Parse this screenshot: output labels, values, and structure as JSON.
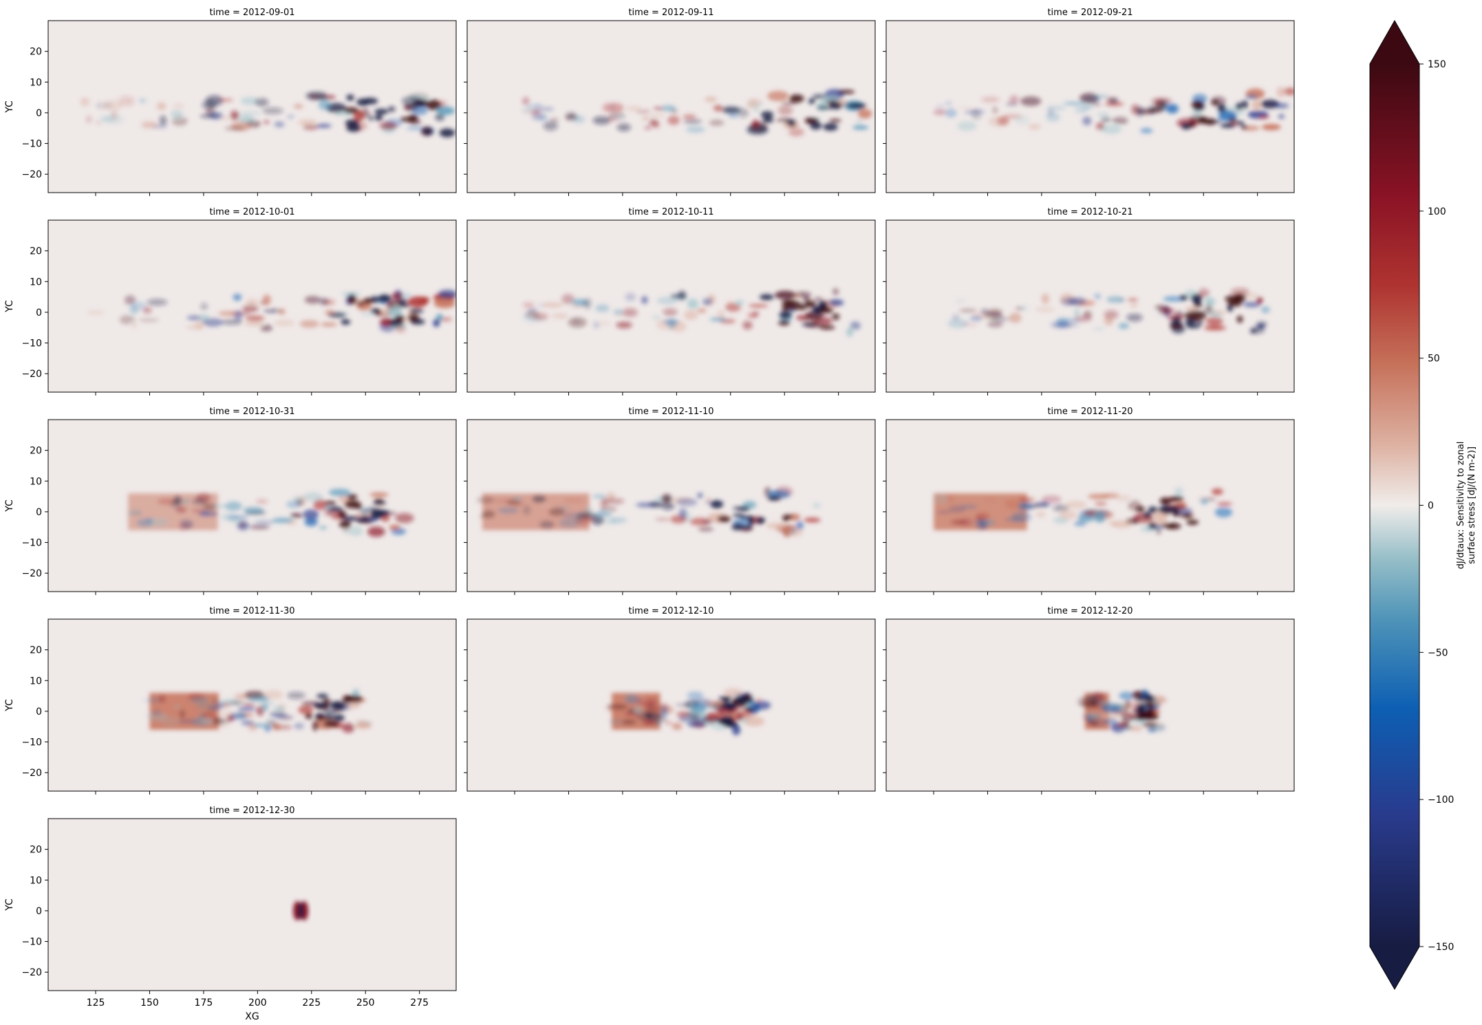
{
  "chart_data": {
    "type": "heatmap",
    "layout": "facet-grid",
    "facet": {
      "rows": 5,
      "cols": 3,
      "title_prefix": "time = "
    },
    "panels": [
      {
        "title": "time = 2012-09-01"
      },
      {
        "title": "time = 2012-09-11"
      },
      {
        "title": "time = 2012-09-21"
      },
      {
        "title": "time = 2012-10-01"
      },
      {
        "title": "time = 2012-10-11"
      },
      {
        "title": "time = 2012-10-21"
      },
      {
        "title": "time = 2012-10-31"
      },
      {
        "title": "time = 2012-11-10"
      },
      {
        "title": "time = 2012-11-20"
      },
      {
        "title": "time = 2012-11-30"
      },
      {
        "title": "time = 2012-12-10"
      },
      {
        "title": "time = 2012-12-20"
      },
      {
        "title": "time = 2012-12-30"
      }
    ],
    "features": [
      {
        "xmin": 120,
        "xmax": 295,
        "amp": 1.0,
        "west_red": 0.0,
        "focus": 0
      },
      {
        "xmin": 125,
        "xmax": 290,
        "amp": 1.0,
        "west_red": 0.0,
        "focus": 0
      },
      {
        "xmin": 128,
        "xmax": 290,
        "amp": 1.0,
        "west_red": 0.0,
        "focus": 0
      },
      {
        "xmin": 125,
        "xmax": 290,
        "amp": 1.0,
        "west_red": 0.0,
        "focus": 0
      },
      {
        "xmin": 130,
        "xmax": 285,
        "amp": 1.0,
        "west_red": 0.0,
        "focus": 0
      },
      {
        "xmin": 135,
        "xmax": 280,
        "amp": 1.0,
        "west_red": 0.0,
        "focus": 0
      },
      {
        "xmin": 140,
        "xmax": 270,
        "amp": 1.0,
        "west_red": 0.3,
        "focus": 0
      },
      {
        "xmin": 110,
        "xmax": 265,
        "amp": 1.0,
        "west_red": 0.5,
        "focus": 0
      },
      {
        "xmin": 125,
        "xmax": 260,
        "amp": 1.0,
        "west_red": 0.8,
        "focus": 0
      },
      {
        "xmin": 150,
        "xmax": 250,
        "amp": 1.0,
        "west_red": 1.0,
        "focus": 0
      },
      {
        "xmin": 170,
        "xmax": 240,
        "amp": 1.0,
        "west_red": 1.0,
        "focus": 0
      },
      {
        "xmin": 195,
        "xmax": 230,
        "amp": 1.0,
        "west_red": 1.0,
        "focus": 0
      },
      {
        "xmin": 215,
        "xmax": 225,
        "amp": 1.0,
        "west_red": 0.0,
        "focus": 1
      }
    ],
    "xlabel": "XG",
    "ylabel": "YC",
    "xlim": [
      103,
      292
    ],
    "ylim": [
      -26,
      30
    ],
    "xticks": [
      125,
      150,
      175,
      200,
      225,
      250,
      275
    ],
    "yticks": [
      20,
      10,
      0,
      -10,
      -20
    ],
    "colorbar": {
      "label_line1": "dJ/dtaux: Sensitivity to zonal",
      "label_line2": "surface stress [dJ/(N m-2)]",
      "vmin": -150,
      "vmax": 150,
      "ticks": [
        150,
        100,
        50,
        0,
        -50,
        -100,
        -150
      ],
      "tick_labels": [
        "150",
        "100",
        "50",
        "0",
        "−50",
        "−100",
        "−150"
      ],
      "extend": "both",
      "colormap": "balance (diverging blue-white-red)"
    }
  },
  "colors": {
    "background_field": "#efe9e8",
    "extreme_negative": "#171c42",
    "extreme_positive": "#3c0912"
  }
}
